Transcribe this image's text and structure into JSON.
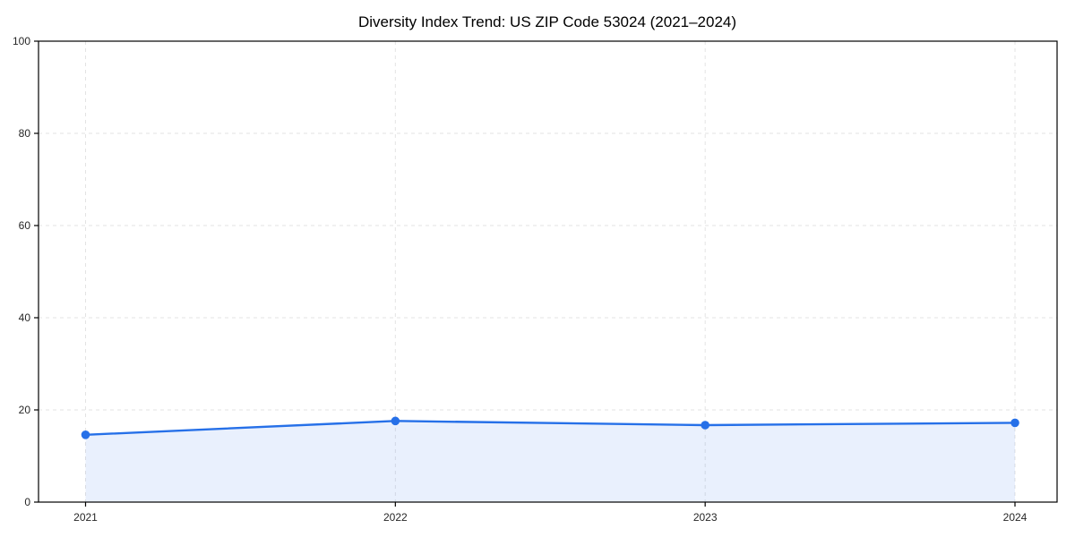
{
  "chart_data": {
    "type": "line",
    "title": "Diversity Index Trend: US ZIP Code 53024 (2021–2024)",
    "categories": [
      "2021",
      "2022",
      "2023",
      "2024"
    ],
    "values": [
      14.6,
      17.6,
      16.7,
      17.2
    ],
    "xlabel": "",
    "ylabel": "",
    "ylim": [
      0,
      100
    ],
    "yticks": [
      0,
      20,
      40,
      60,
      80,
      100
    ],
    "grid": true,
    "grid_style": "dashed",
    "legend": "none",
    "marker": "circle",
    "area_fill": true,
    "colors": {
      "line": "#2670E8",
      "marker": "#2670E8",
      "area": "rgba(38, 112, 232, 0.10)",
      "grid": "#e3e3e3",
      "axis": "#000000",
      "tick_label": "#262626",
      "title": "#000000",
      "background": "#ffffff"
    }
  }
}
